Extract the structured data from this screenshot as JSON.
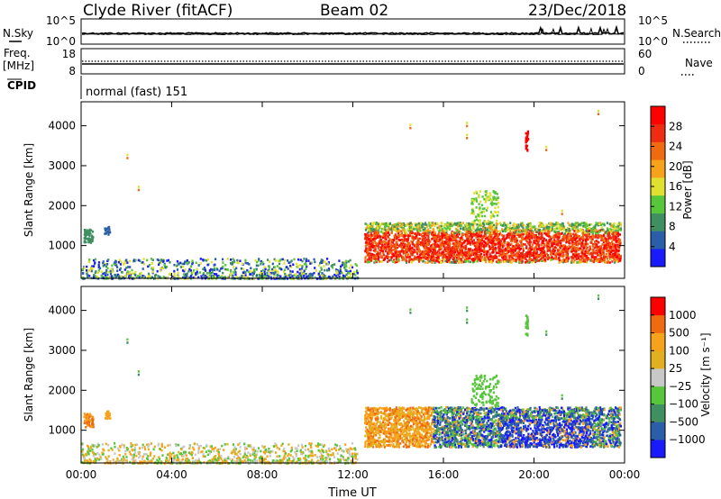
{
  "header": {
    "station": "Clyde River (fitACF)",
    "beam": "Beam 02",
    "date": "23/Dec/2018"
  },
  "panel_labels": {
    "nsky": "N.Sky",
    "nsearch": "N.Search",
    "freq_line1": "Freq.",
    "freq_line2": "[MHz]",
    "nave": "Nave",
    "cpid": "CPID",
    "cpid_value": "normal (fast) 151"
  },
  "colors": {
    "power_scale": [
      "#1a1aff",
      "#2a5ea8",
      "#3f8f60",
      "#58c63a",
      "#e0e030",
      "#f7a21b",
      "#f06a10",
      "#ee2c12",
      "#ff0000"
    ],
    "velocity_scale": [
      "#1a1aff",
      "#2a5ea8",
      "#3f8f60",
      "#58c63a",
      "#c8c8c8",
      "#e0b020",
      "#f7a21b",
      "#f06a10",
      "#ff0000"
    ]
  },
  "chart_data": [
    {
      "type": "line",
      "name": "noise-panel",
      "ylabel_left": "N.Sky",
      "ylabel_right": "N.Search",
      "left_ticks": [
        "10^5",
        "10^0"
      ],
      "right_ticks": [
        "10^5",
        "10^0"
      ]
    },
    {
      "type": "line",
      "name": "frequency-panel",
      "ylabel_left": "Freq. [MHz]",
      "ylabel_right": "Nave",
      "left_ticks": [
        "18",
        "8"
      ],
      "right_ticks": [
        "60",
        "0"
      ]
    },
    {
      "type": "heatmap",
      "name": "power",
      "xlabel": "",
      "ylabel": "Slant Range [km]",
      "yticks": [
        "4000",
        "3000",
        "2000",
        "1000"
      ],
      "ylim": [
        180,
        4600
      ],
      "colorbar_label": "Power [dB]",
      "colorbar_ticks": [
        "28",
        "24",
        "20",
        "16",
        "12",
        "8",
        "4"
      ]
    },
    {
      "type": "heatmap",
      "name": "velocity",
      "xlabel": "Time UT",
      "ylabel": "Slant Range [km]",
      "xticks": [
        "00:00",
        "04:00",
        "08:00",
        "12:00",
        "16:00",
        "20:00",
        "00:00"
      ],
      "xlim_hours": [
        0,
        24
      ],
      "yticks": [
        "4000",
        "3000",
        "2000",
        "1000"
      ],
      "ylim": [
        180,
        4600
      ],
      "colorbar_label": "Velocity [m s⁻¹]",
      "colorbar_ticks": [
        "1000",
        "500",
        "100",
        "25",
        "−25",
        "−100",
        "−500",
        "−1000"
      ]
    }
  ]
}
